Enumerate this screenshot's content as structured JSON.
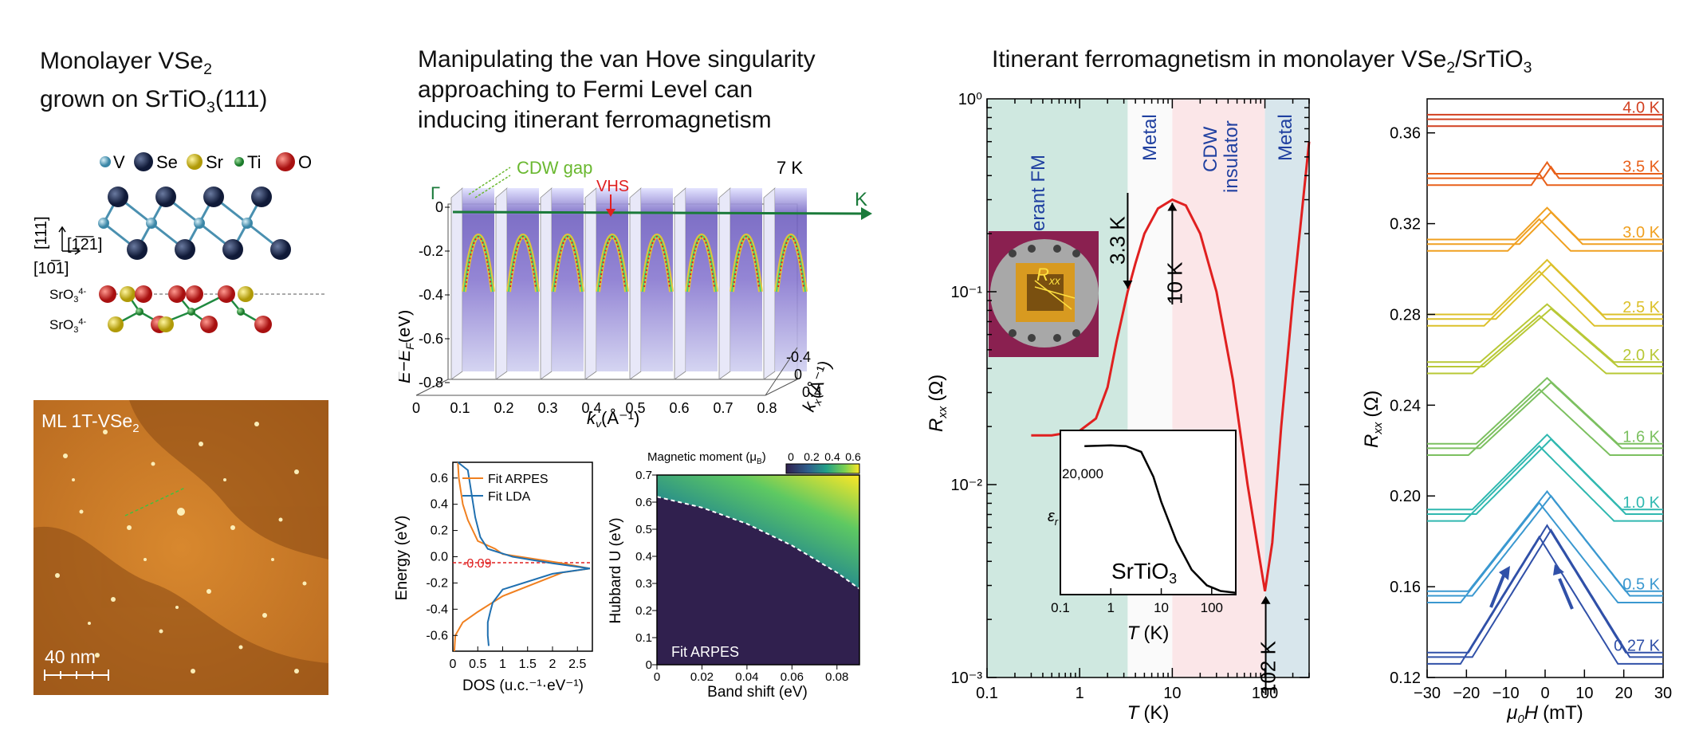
{
  "panel_a": {
    "title_line1": "Monolayer VSe",
    "title_sub1": "2",
    "title_line2": "grown on SrTiO",
    "title_sub2": "3",
    "title_line2_end": "(111)",
    "legend": {
      "v": "V",
      "se": "Se",
      "sr": "Sr",
      "ti": "Ti",
      "o": "O"
    },
    "axis_111": "[111]",
    "axis_121": "[1̅2̅1]",
    "axis_101": "[10̅1]",
    "layer_label": "SrO",
    "layer_sub": "3",
    "layer_sup": "4-",
    "stm_label": "ML 1T-VSe",
    "stm_label_sub": "2",
    "scale_bar": "40 nm",
    "colors": {
      "v": "#5aa6c0",
      "se": "#1c2a4e",
      "sr": "#d4c020",
      "ti": "#2a9a3a",
      "o": "#d4201c",
      "stm": "#c87828"
    }
  },
  "panel_b": {
    "title_line1": "Manipulating the van Hove singularity",
    "title_line2": "approaching to Fermi Level can",
    "title_line3": "inducing itinerant ferromagnetism",
    "arpes": {
      "temp": "7 K",
      "gamma": "Γ",
      "k_point": "K",
      "cdw_gap": "CDW gap",
      "vhs": "VHS",
      "ylabel": "E−E",
      "ylabel_sub": "F",
      "ylabel_unit": "(eV)",
      "yticks": [
        "0",
        "-0.2",
        "-0.4",
        "-0.6",
        "-0.8"
      ],
      "xlabel": "k",
      "xlabel_sub": "y",
      "xlabel_unit": "(Å⁻¹)",
      "xticks": [
        "0",
        "0.1",
        "0.2",
        "0.3",
        "0.4",
        "0.5",
        "0.6",
        "0.7",
        "0.8"
      ],
      "zlabel": "k",
      "zlabel_sub": "x",
      "zlabel_unit": "(Å⁻¹)",
      "zticks": [
        "-0.4",
        "0",
        "0.4"
      ]
    }
  },
  "panel_c": {
    "title": "Itinerant ferromagnetism in monolayer VSe",
    "title_sub": "2",
    "title_end": "/SrTiO",
    "title_sub2": "3",
    "regions": {
      "fm": "Itinerant FM",
      "metal1": "Metal",
      "cdw": "CDW",
      "insulator": "insulator",
      "metal2": "Metal"
    },
    "annotations": {
      "t1": "3.3 K",
      "t2": "10 K",
      "t3": "102 K"
    },
    "device_label": "R",
    "device_sub": "xx",
    "inset": {
      "ylabel": "ε",
      "ylabel_sub": "r",
      "ytick": "20,000",
      "label": "SrTiO",
      "label_sub": "3",
      "xticks": [
        "0.1",
        "1",
        "10",
        "100"
      ],
      "xlabel": "T",
      "xunit": "(K)"
    },
    "ylabel": "R",
    "ylabel_sub": "xx",
    "yunit": "(Ω)",
    "xlabel": "T",
    "xunit": "(K)",
    "colors": {
      "fm": "#cfe8e0",
      "cdw": "#fbe6e8",
      "metal2": "#d8e6ec",
      "curve": "#e02020",
      "region_text": "#2040a0"
    }
  },
  "panel_d": {
    "ylabel": "R",
    "ylabel_sub": "xx",
    "yunit": "(Ω)",
    "xlabel": "μ",
    "xlabel_sub": "0",
    "xlabel_end": "H",
    "xunit": "(mT)",
    "xticks": [
      "−30",
      "−20",
      "−10",
      "0",
      "10",
      "20",
      "30"
    ],
    "yticks": [
      "0.12",
      "0.16",
      "0.20",
      "0.24",
      "0.28",
      "0.32",
      "0.36"
    ]
  },
  "panel_e": {
    "legend": {
      "arpes": "Fit ARPES",
      "lda": "Fit LDA"
    },
    "marker": "-0.09",
    "ylabel": "Energy (eV)",
    "xlabel": "DOS (u.c.⁻¹·eV⁻¹)",
    "xticks": [
      "0",
      "0.5",
      "1",
      "1.5",
      "2",
      "2.5"
    ],
    "yticks": [
      "0.6",
      "0.4",
      "0.2",
      "0.0",
      "-0.2",
      "-0.4",
      "-0.6"
    ],
    "colors": {
      "arpes": "#f08020",
      "lda": "#2070b0"
    }
  },
  "panel_f": {
    "cbar_label": "Magnetic moment (μ",
    "cbar_label_sub": "B",
    "cbar_label_end": ")",
    "cbar_ticks": [
      "0",
      "0.2",
      "0.4",
      "0.6"
    ],
    "ylabel": "Hubbard U (eV)",
    "xlabel": "Band shift (eV)",
    "fit_label": "Fit ARPES",
    "xticks": [
      "0",
      "0.02",
      "0.04",
      "0.06",
      "0.08"
    ],
    "yticks": [
      "0",
      "0.1",
      "0.2",
      "0.3",
      "0.4",
      "0.5",
      "0.6",
      "0.7"
    ]
  },
  "chart_data": [
    {
      "type": "line",
      "id": "rxx_vs_T",
      "xlabel": "T (K)",
      "ylabel": "R_xx (Ω)",
      "x_scale": "log",
      "y_scale": "log",
      "xlim": [
        0.1,
        300
      ],
      "ylim": [
        0.001,
        1
      ],
      "xticks": [
        "0.1",
        "1",
        "10",
        "100"
      ],
      "yticks": [
        "10⁻³",
        "10⁻²",
        "10⁻¹",
        "10⁰"
      ],
      "series": [
        {
          "x": [
            0.3,
            0.5,
            1.0,
            1.5,
            2.0,
            2.5,
            3.3,
            4.0,
            5.0,
            7.0,
            10.0,
            14.0,
            20.0,
            30.0,
            45.0,
            65.0,
            85.0,
            100.0,
            120.0,
            150.0,
            200.0,
            300.0
          ],
          "y": [
            0.018,
            0.018,
            0.019,
            0.022,
            0.032,
            0.055,
            0.1,
            0.14,
            0.2,
            0.27,
            0.3,
            0.28,
            0.2,
            0.1,
            0.035,
            0.01,
            0.0045,
            0.0028,
            0.005,
            0.02,
            0.09,
            0.6
          ]
        }
      ]
    },
    {
      "type": "line",
      "id": "epsilon_inset",
      "xlabel": "T (K)",
      "ylabel": "ε_r",
      "x_scale": "log",
      "xlim": [
        0.1,
        300
      ],
      "series": [
        {
          "x": [
            0.3,
            1,
            2,
            4,
            7,
            10,
            20,
            40,
            80,
            150,
            300
          ],
          "y": [
            20800,
            20900,
            20800,
            20000,
            16500,
            13000,
            7500,
            3500,
            1300,
            500,
            250
          ]
        }
      ]
    },
    {
      "type": "line",
      "id": "rxx_vs_field",
      "xlabel": "μ0H (mT)",
      "ylabel": "R_xx (Ω)",
      "xlim": [
        -30,
        30
      ],
      "ylim": [
        0.12,
        0.375
      ],
      "series": [
        {
          "name": "4.0 K",
          "base": 0.366,
          "peak": 0.0,
          "width": 0,
          "color": "#d24020"
        },
        {
          "name": "3.5 K",
          "base": 0.34,
          "peak": 0.005,
          "width": 2,
          "color": "#e8601a"
        },
        {
          "name": "3.0 K",
          "base": 0.311,
          "peak": 0.014,
          "width": 8,
          "color": "#f0a020"
        },
        {
          "name": "2.5 K",
          "base": 0.278,
          "peak": 0.024,
          "width": 14,
          "color": "#dcc02a"
        },
        {
          "name": "2.0 K",
          "base": 0.257,
          "peak": 0.0255,
          "width": 17,
          "color": "#b8c836"
        },
        {
          "name": "1.6 K",
          "base": 0.221,
          "peak": 0.029,
          "width": 18,
          "color": "#7cc060"
        },
        {
          "name": "1.0 K",
          "base": 0.192,
          "peak": 0.033,
          "width": 19,
          "color": "#30b8b0"
        },
        {
          "name": "0.5 K",
          "base": 0.156,
          "peak": 0.044,
          "width": 20,
          "color": "#3a98d0"
        },
        {
          "name": "0.27 K",
          "base": 0.129,
          "peak": 0.056,
          "width": 20,
          "color": "#3050a8"
        }
      ]
    },
    {
      "type": "line",
      "id": "dos",
      "xlabel": "DOS (u.c.⁻¹·eV⁻¹)",
      "ylabel": "Energy (eV)",
      "xlim": [
        0,
        2.8
      ],
      "ylim": [
        -0.72,
        0.72
      ],
      "series": [
        {
          "name": "Fit ARPES",
          "x": [
            0.1,
            0.12,
            0.2,
            0.3,
            0.5,
            0.85,
            1.0,
            2.2,
            2.75,
            2.2,
            1.0,
            0.5,
            0.2,
            0.05,
            0.03
          ],
          "y": [
            0.72,
            0.6,
            0.4,
            0.28,
            0.12,
            0.06,
            0.02,
            -0.05,
            -0.09,
            -0.12,
            -0.3,
            -0.42,
            -0.5,
            -0.6,
            -0.72
          ]
        },
        {
          "name": "Fit LDA",
          "x": [
            0.1,
            0.3,
            0.45,
            0.55,
            0.7,
            1.2,
            2.0,
            2.75,
            2.0,
            1.0,
            0.8,
            0.75,
            0.7,
            0.7,
            0.72
          ],
          "y": [
            0.72,
            0.66,
            0.3,
            0.15,
            0.06,
            0.0,
            -0.05,
            -0.09,
            -0.13,
            -0.25,
            -0.35,
            -0.42,
            -0.5,
            -0.6,
            -0.68
          ]
        }
      ]
    },
    {
      "type": "heatmap",
      "id": "hubbard_phase",
      "xlabel": "Band shift (eV)",
      "ylabel": "Hubbard U (eV)",
      "xlim": [
        0,
        0.09
      ],
      "ylim": [
        0,
        0.7
      ],
      "boundary": {
        "x": [
          0,
          0.01,
          0.02,
          0.03,
          0.04,
          0.05,
          0.06,
          0.07,
          0.08,
          0.09
        ],
        "y": [
          0.62,
          0.6,
          0.58,
          0.55,
          0.52,
          0.48,
          0.44,
          0.39,
          0.34,
          0.28
        ]
      },
      "cbar_range": [
        0,
        0.65
      ]
    }
  ]
}
